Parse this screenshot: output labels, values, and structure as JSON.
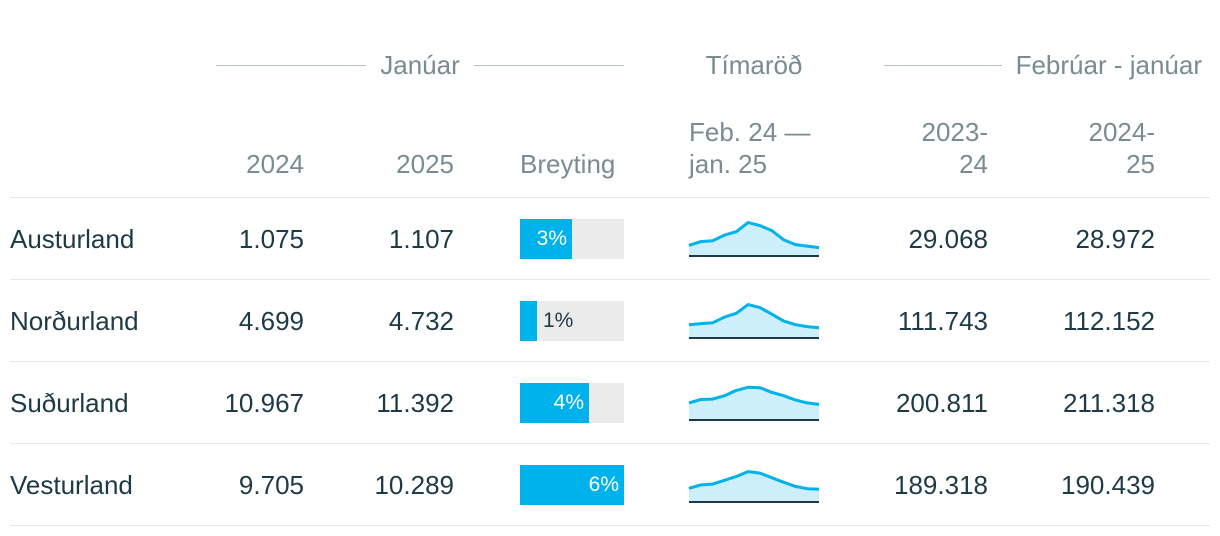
{
  "groups": {
    "januar": "Janúar",
    "timarod": "Tímaröð",
    "feb_jan": "Febrúar - janúar"
  },
  "columns": {
    "y2024": "2024",
    "y2025": "2025",
    "change": "Breyting",
    "series_line1": "Feb. 24 —",
    "series_line2": "jan. 25",
    "p2324_line1": "2023-",
    "p2324_line2": "24",
    "p2425_line1": "2024-",
    "p2425_line2": "25"
  },
  "colors": {
    "bar": "#00b2ec",
    "track": "#ebebeb",
    "line": "#00b2ec",
    "area": "#cdeefb",
    "baseline": "#1d3a46"
  },
  "chart_data": {
    "type": "table",
    "rows": [
      {
        "region": "Austurland",
        "jan_2024": "1.075",
        "jan_2025": "1.107",
        "change_pct": 3,
        "change_label": "3%",
        "feb_jan_2023_24": "29.068",
        "feb_jan_2024_25": "28.972",
        "sparkline": [
          0.28,
          0.38,
          0.4,
          0.55,
          0.64,
          0.88,
          0.8,
          0.67,
          0.43,
          0.3,
          0.26,
          0.22
        ]
      },
      {
        "region": "Norðurland",
        "jan_2024": "4.699",
        "jan_2025": "4.732",
        "change_pct": 1,
        "change_label": "1%",
        "feb_jan_2023_24": "111.743",
        "feb_jan_2024_25": "112.152",
        "sparkline": [
          0.35,
          0.38,
          0.4,
          0.55,
          0.65,
          0.88,
          0.8,
          0.63,
          0.45,
          0.35,
          0.3,
          0.27
        ]
      },
      {
        "region": "Suðurland",
        "jan_2024": "10.967",
        "jan_2025": "11.392",
        "change_pct": 4,
        "change_label": "4%",
        "feb_jan_2023_24": "200.811",
        "feb_jan_2024_25": "211.318",
        "sparkline": [
          0.45,
          0.54,
          0.55,
          0.64,
          0.78,
          0.86,
          0.85,
          0.73,
          0.64,
          0.53,
          0.45,
          0.41
        ]
      },
      {
        "region": "Vesturland",
        "jan_2024": "9.705",
        "jan_2025": "10.289",
        "change_pct": 6,
        "change_label": "6%",
        "feb_jan_2023_24": "189.318",
        "feb_jan_2024_25": "190.439",
        "sparkline": [
          0.36,
          0.45,
          0.47,
          0.57,
          0.67,
          0.8,
          0.76,
          0.64,
          0.52,
          0.41,
          0.35,
          0.34
        ]
      }
    ]
  }
}
